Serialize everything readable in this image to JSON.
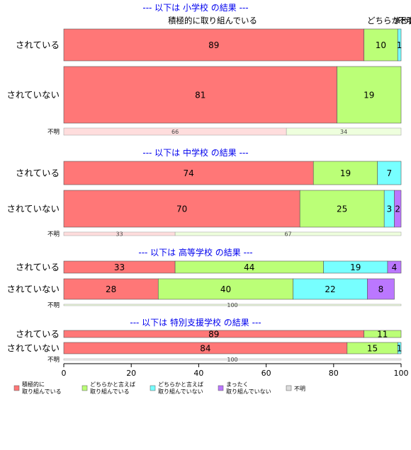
{
  "chart_data": {
    "type": "bar",
    "orientation": "horizontal",
    "stacked": true,
    "percent": true,
    "xlim": [
      0,
      100
    ],
    "xticks": [
      "0",
      "20",
      "40",
      "60",
      "80",
      "100"
    ],
    "grid": false,
    "legend_position": "bottom",
    "top_labels": [
      "積極的に取り組んでいる",
      "どちらかと言えば",
      "まったく",
      "不明"
    ],
    "series": [
      {
        "name": "積極的に\n取り組んでいる",
        "color": "#ff7777"
      },
      {
        "name": "どちらかと言えば\n取り組んでいる",
        "color": "#bbff77"
      },
      {
        "name": "どちらかと言えば\n取り組んでいない",
        "color": "#77ffff"
      },
      {
        "name": "まったく\n取り組んでいない",
        "color": "#bb77ff"
      },
      {
        "name": "不明",
        "color": "#dddddd"
      }
    ],
    "panels": [
      {
        "title": "--- 以下は 小学校 の結果 ---",
        "rows": [
          {
            "label": "されている",
            "values": [
              89,
              10,
              1,
              0,
              0
            ],
            "labels": [
              "89",
              "10",
              "1",
              "",
              ""
            ]
          },
          {
            "label": "されていない",
            "values": [
              81,
              19,
              0,
              0,
              0
            ],
            "labels": [
              "81",
              "19",
              "",
              "",
              ""
            ]
          }
        ],
        "unknown": {
          "label": "不明",
          "values": [
            66,
            34,
            0,
            0,
            0
          ],
          "labels": [
            "66",
            "34",
            "",
            "",
            ""
          ]
        }
      },
      {
        "title": "--- 以下は 中学校 の結果 ---",
        "rows": [
          {
            "label": "されている",
            "values": [
              74,
              19,
              7,
              0,
              0
            ],
            "labels": [
              "74",
              "19",
              "7",
              "",
              ""
            ]
          },
          {
            "label": "されていない",
            "values": [
              70,
              25,
              3,
              2,
              0
            ],
            "labels": [
              "70",
              "25",
              "3",
              "2",
              ""
            ]
          }
        ],
        "unknown": {
          "label": "不明",
          "values": [
            33,
            67,
            0,
            0,
            0
          ],
          "labels": [
            "33",
            "67",
            "",
            "",
            ""
          ]
        }
      },
      {
        "title": "--- 以下は 高等学校 の結果 ---",
        "rows": [
          {
            "label": "されている",
            "values": [
              33,
              44,
              19,
              4,
              0
            ],
            "labels": [
              "33",
              "44",
              "19",
              "4",
              ""
            ]
          },
          {
            "label": "されていない",
            "values": [
              28,
              40,
              22,
              8,
              0
            ],
            "labels": [
              "28",
              "40",
              "22",
              "8",
              ""
            ]
          }
        ],
        "unknown": {
          "label": "不明",
          "values": [
            0,
            100,
            0,
            0,
            0
          ],
          "labels": [
            "",
            "100",
            "",
            "",
            ""
          ]
        }
      },
      {
        "title": "--- 以下は 特別支援学校 の結果 ---",
        "rows": [
          {
            "label": "されている",
            "values": [
              89,
              11,
              0,
              0,
              0
            ],
            "labels": [
              "89",
              "11",
              "",
              "",
              ""
            ]
          },
          {
            "label": "されていない",
            "values": [
              84,
              15,
              1,
              0,
              0
            ],
            "labels": [
              "84",
              "15",
              "1",
              "",
              ""
            ]
          }
        ],
        "unknown": {
          "label": "不明",
          "values": [
            0,
            0,
            0,
            0,
            100
          ],
          "labels": [
            "",
            "",
            "",
            "",
            "100"
          ]
        }
      }
    ]
  }
}
